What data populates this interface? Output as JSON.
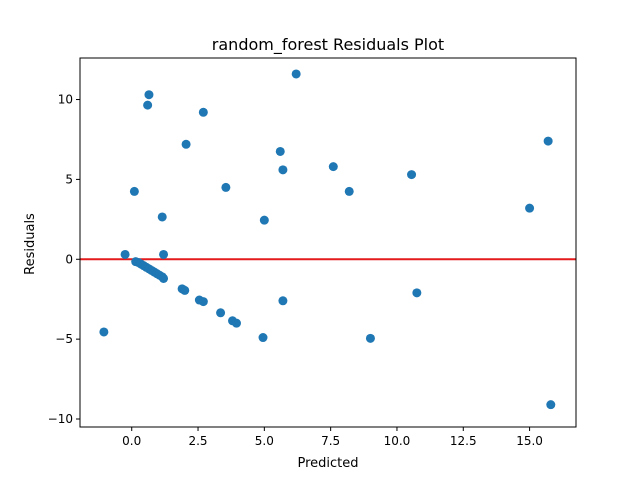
{
  "chart_data": {
    "type": "scatter",
    "title": "random_forest Residuals Plot",
    "xlabel": "Predicted",
    "ylabel": "Residuals",
    "xlim": [
      -1.95,
      16.75
    ],
    "ylim": [
      -10.5,
      12.6
    ],
    "xticks": [
      0.0,
      2.5,
      5.0,
      7.5,
      10.0,
      12.5,
      15.0
    ],
    "xtick_labels": [
      "0.0",
      "2.5",
      "5.0",
      "7.5",
      "10.0",
      "12.5",
      "15.0"
    ],
    "yticks": [
      -10,
      -5,
      0,
      5,
      10
    ],
    "ytick_labels": [
      "−10",
      "−5",
      "0",
      "5",
      "10"
    ],
    "grid": false,
    "reference_line": {
      "y": 0,
      "color": "#e41a1c"
    },
    "marker_color": "#1f77b4",
    "points": [
      {
        "x": -1.05,
        "y": -4.55
      },
      {
        "x": -0.25,
        "y": 0.3
      },
      {
        "x": 0.1,
        "y": 4.25
      },
      {
        "x": 0.15,
        "y": -0.15
      },
      {
        "x": 0.25,
        "y": -0.2
      },
      {
        "x": 0.35,
        "y": -0.3
      },
      {
        "x": 0.45,
        "y": -0.4
      },
      {
        "x": 0.55,
        "y": -0.5
      },
      {
        "x": 0.6,
        "y": 9.65
      },
      {
        "x": 0.65,
        "y": 10.3
      },
      {
        "x": 0.65,
        "y": -0.6
      },
      {
        "x": 0.75,
        "y": -0.7
      },
      {
        "x": 0.85,
        "y": -0.8
      },
      {
        "x": 0.95,
        "y": -0.9
      },
      {
        "x": 1.05,
        "y": -1.0
      },
      {
        "x": 1.15,
        "y": -1.1
      },
      {
        "x": 1.2,
        "y": -1.2
      },
      {
        "x": 1.15,
        "y": 2.65
      },
      {
        "x": 1.2,
        "y": 0.3
      },
      {
        "x": 1.9,
        "y": -1.85
      },
      {
        "x": 2.0,
        "y": -1.95
      },
      {
        "x": 2.05,
        "y": 7.2
      },
      {
        "x": 2.55,
        "y": -2.55
      },
      {
        "x": 2.7,
        "y": -2.65
      },
      {
        "x": 2.7,
        "y": 9.2
      },
      {
        "x": 3.35,
        "y": -3.35
      },
      {
        "x": 3.55,
        "y": 4.5
      },
      {
        "x": 3.8,
        "y": -3.85
      },
      {
        "x": 3.95,
        "y": -4.0
      },
      {
        "x": 4.95,
        "y": -4.9
      },
      {
        "x": 5.0,
        "y": 2.45
      },
      {
        "x": 5.6,
        "y": 6.75
      },
      {
        "x": 5.7,
        "y": -2.6
      },
      {
        "x": 5.7,
        "y": 5.6
      },
      {
        "x": 6.2,
        "y": 11.6
      },
      {
        "x": 7.6,
        "y": 5.8
      },
      {
        "x": 8.2,
        "y": 4.25
      },
      {
        "x": 9.0,
        "y": -4.95
      },
      {
        "x": 10.55,
        "y": 5.3
      },
      {
        "x": 10.75,
        "y": -2.1
      },
      {
        "x": 15.0,
        "y": 3.2
      },
      {
        "x": 15.7,
        "y": 7.4
      },
      {
        "x": 15.8,
        "y": -9.1
      }
    ]
  }
}
